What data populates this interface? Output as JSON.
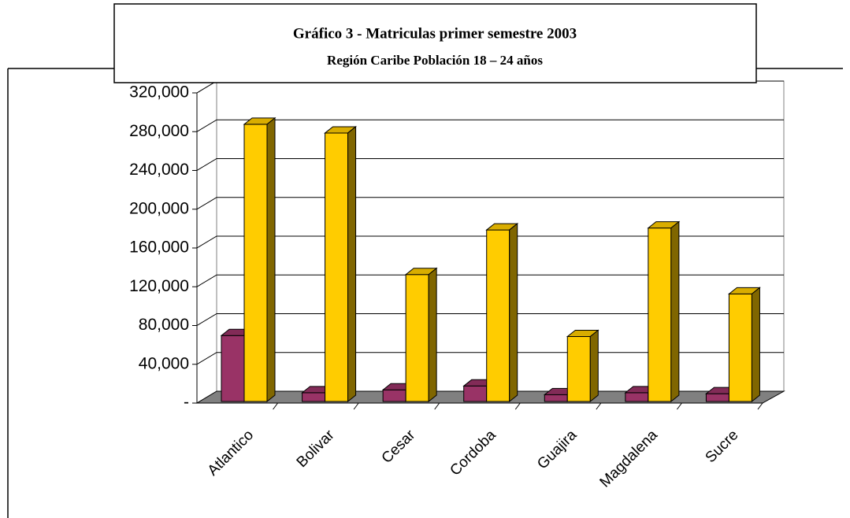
{
  "chart_data": {
    "type": "bar3d",
    "title": "Gráfico 3 -  Matriculas primer semestre 2003",
    "subtitle": "Región Caribe Población 18 – 24 años",
    "categories": [
      "Atlantico",
      "Bolivar",
      "Cesar",
      "Cordoba",
      "Guajira",
      "Magdalena",
      "Sucre"
    ],
    "series": [
      {
        "color": "#993366",
        "values": [
          68000,
          9000,
          12000,
          16000,
          7000,
          9000,
          8000
        ]
      },
      {
        "color": "#ffcc00",
        "values": [
          286000,
          277000,
          131000,
          177000,
          67000,
          179000,
          111000
        ]
      }
    ],
    "ylim": [
      0,
      320000
    ],
    "yticks": [
      {
        "value": 0,
        "label": "-"
      },
      {
        "value": 40000,
        "label": "40,000"
      },
      {
        "value": 80000,
        "label": "80,000"
      },
      {
        "value": 120000,
        "label": "120,000"
      },
      {
        "value": 160000,
        "label": "160,000"
      },
      {
        "value": 200000,
        "label": "200,000"
      },
      {
        "value": 240000,
        "label": "240,000"
      },
      {
        "value": 280000,
        "label": "280,000"
      },
      {
        "value": 320000,
        "label": "320,000"
      }
    ],
    "grid": true
  }
}
